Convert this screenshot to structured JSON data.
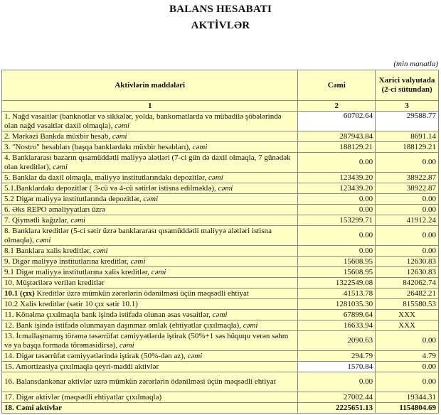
{
  "title": "BALANS HESABATI",
  "subtitle": "AKTİVLƏR",
  "unit": "(min manatla)",
  "columns": {
    "headers": [
      "Aktivlərin   maddələri",
      "Cəmi",
      "Xarici valyutada (2-ci sütundan)"
    ],
    "numbers": [
      "1",
      "2",
      "3"
    ]
  },
  "colors": {
    "cell_bg": "#ffffc6",
    "border": "#8a8a7a"
  },
  "rows": [
    {
      "b": "",
      "t": "1. Nağd vəsaitlər (banknotlar və sikkələr, yolda, bankomatlarda və mübadilə şöbələrində olan nağd vəsaitlər daxil olmaqla), ",
      "i": "cəmi",
      "v2": "60702.64",
      "v3": "29588.77"
    },
    {
      "b": "",
      "t": "2. Mərkəzi Bankda müxbir hesab, ",
      "i": "cəmi",
      "v2": "287943.84",
      "v3": "8691.14"
    },
    {
      "b": "",
      "t": "3. \"Nostro\" hesabları (başqa banklardakı müxbir hesabları), ",
      "i": "cəmi",
      "v2": "188129.21",
      "v3": "188129.21"
    },
    {
      "b": "",
      "t": "4. Banklararası bazarın qısamüddətli maliyyə alətləri (7-ci gün də daxil olmaqla, 7 günədək olan kreditlər), ",
      "i": "cəmi",
      "v2": "0.00",
      "v3": "0.00"
    },
    {
      "b": "",
      "t": "5. Banklar da daxil olmaqla, maliyyə institutlarındakı depozitlər, ",
      "i": "cəmi",
      "v2": "123439.20",
      "v3": "38922.87"
    },
    {
      "b": "",
      "t": "5.1.Banklardakı depozitlər ( 3-cü və 4-cü sətirlər istisna edilməklə), ",
      "i": "cəmi",
      "v2": "123439.20",
      "v3": "38922.87"
    },
    {
      "b": "",
      "t": "5.2 Digər maliyyə institutlarında depozitlər, ",
      "i": "cəmi",
      "v2": "0.00",
      "v3": "0.00"
    },
    {
      "b": "",
      "t": "6. Əks REPO əməliyyatları üzrə",
      "i": "",
      "v2": "0.00",
      "v3": "0.00"
    },
    {
      "b": "",
      "t": "7. Qiymətli kağızlar, ",
      "i": "cəmi",
      "v2": "153299.71",
      "v3": "41912.24"
    },
    {
      "b": "",
      "t": "8. Banklara kreditlər (5-ci sətir üzrə banklararası qısamüddətli maliyyə alətləri istisna olmaqla), ",
      "i": "cəmi",
      "v2": "0.00",
      "v3": "0.00"
    },
    {
      "b": "",
      "t": "8.1 Banklara xalis kreditlər, ",
      "i": "cəmi",
      "v2": "0.00",
      "v3": "0.00"
    },
    {
      "b": "",
      "t": "9. Digər maliyyə institutlarına kreditlər, ",
      "i": "cəmi",
      "v2": "15608.95",
      "v3": "12630.83"
    },
    {
      "b": "",
      "t": "9.1 Digər maliyyə institutlarına xalis kreditlər, ",
      "i": "cəmi",
      "v2": "15608.95",
      "v3": "12630.83"
    },
    {
      "b": "",
      "t": "10. Müştərilərə verilən kreditlər",
      "i": "",
      "v2": "1322549.08",
      "v3": "842062.74"
    },
    {
      "b": "10.1 (çıx)",
      "t": " Kreditlər üzrə mümkün zərərlərin ödənilməsi üçün məqsədli ehtiyat",
      "i": "",
      "v2": "41513.78",
      "v3": "26482.21"
    },
    {
      "b": "",
      "t": "10.2 Xalis kreditlər (sətir 10 çıx sətir 10.1)",
      "i": "",
      "v2": "1281035.30",
      "v3": "815580.53"
    },
    {
      "b": "",
      "t": "11. Könəlmə çıxılmaqla bank işində istifadə olunan əsas vəsaitlər, ",
      "i": "cəmi",
      "v2": "67899.64",
      "v3": "XXX"
    },
    {
      "b": "",
      "t": "12. Bank işində istifadə olunmayan daşınmaz əmlak (ehtiyatlar çıxılmaqla), ",
      "i": "cəmi",
      "v2": "16633.94",
      "v3": "XXX"
    },
    {
      "b": "",
      "t": "13. İcmallaşmamış törəmə təsərrüfat cəmiyyətlərdə iştirak (50%+1 səs hüququ verən səhm və ya başqa formada törəməsidirsə), ",
      "i": "cəmi",
      "v2": "2090.63",
      "v3": "0.00"
    },
    {
      "b": "",
      "t": "14. Digər təsərrüfat cəmiyyətlərində iştirak (50%-dən az), ",
      "i": "cəmi",
      "v2": "294.79",
      "v3": "4.79"
    },
    {
      "b": "",
      "t": "15. Amortizasiya çıxılmaqla qeyri-maddi aktivlər",
      "i": "",
      "v2": "1570.84",
      "v3": "0.00"
    },
    {
      "b": "",
      "t": "16. Balansdankənar aktivlər uzrə mümkün zərərlərin ödənilməsi üçün məqsədli ehtiyat",
      "i": "",
      "v2": "0.00",
      "v3": "0.00"
    },
    {
      "b": "",
      "t": "17. Digər aktivlər (məqsədli ehtiyatlar çıxılmaqla)",
      "i": "",
      "v2": "27002.44",
      "v3": "19344.31"
    },
    {
      "b": "",
      "t": "18. Cəmi aktivlər",
      "i": "",
      "v2": "2225651.13",
      "v3": "1154804.69"
    }
  ]
}
